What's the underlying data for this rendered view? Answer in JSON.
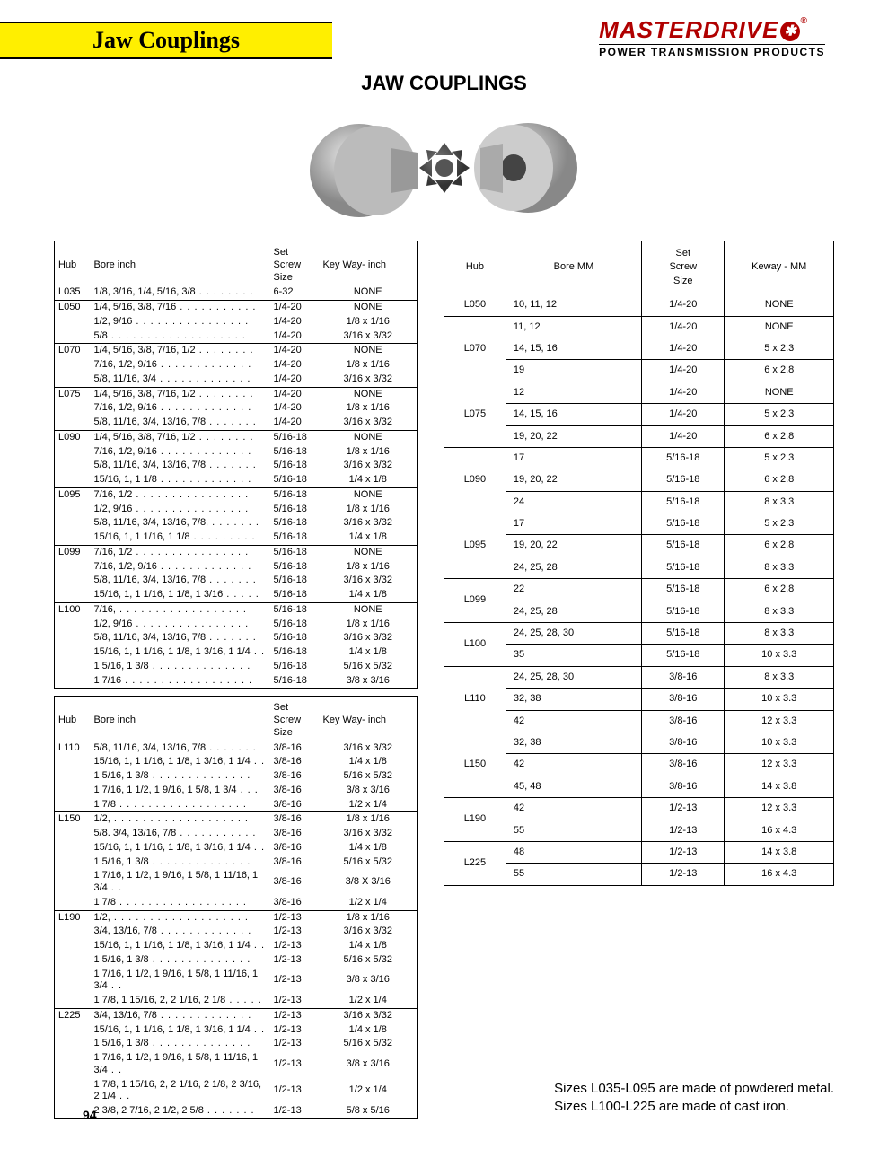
{
  "header": {
    "title": "Jaw Couplings"
  },
  "brand": {
    "name": "MASTERDRIVE",
    "tagline": "POWER TRANSMISSION PRODUCTS"
  },
  "page_title": "JAW COUPLINGS",
  "page_number": "94",
  "footnote_1": "Sizes L035-L095 are made of powdered metal.",
  "footnote_2": "Sizes L100-L225 are made of cast iron.",
  "inch_header": {
    "hub": "Hub",
    "bore": "Bore inch",
    "screw": "Set Screw Size",
    "kw": "Key Way- inch"
  },
  "mm_header": {
    "hub": "Hub",
    "bore": "Bore MM",
    "screw": "Set Screw Size",
    "kw": "Keway - MM"
  },
  "inch_table_1": [
    {
      "sep": true,
      "hub": "L035",
      "bore": "1/8, 3/16, 1/4, 5/16, 3/8",
      "screw": "6-32",
      "kw": "NONE"
    },
    {
      "sep": true,
      "hub": "L050",
      "bore": "1/4, 5/16, 3/8, 7/16",
      "screw": "1/4-20",
      "kw": "NONE"
    },
    {
      "hub": "",
      "bore": "1/2, 9/16",
      "screw": "1/4-20",
      "kw": "1/8   x   1/16"
    },
    {
      "hub": "",
      "bore": "5/8",
      "screw": "1/4-20",
      "kw": "3/16   x   3/32"
    },
    {
      "sep": true,
      "hub": "L070",
      "bore": "1/4, 5/16, 3/8, 7/16, 1/2",
      "screw": "1/4-20",
      "kw": "NONE"
    },
    {
      "hub": "",
      "bore": "7/16, 1/2, 9/16",
      "screw": "1/4-20",
      "kw": "1/8   x   1/16"
    },
    {
      "hub": "",
      "bore": "5/8, 11/16, 3/4",
      "screw": "1/4-20",
      "kw": "3/16   x   3/32"
    },
    {
      "sep": true,
      "hub": "L075",
      "bore": "1/4, 5/16, 3/8, 7/16, 1/2",
      "screw": "1/4-20",
      "kw": "NONE"
    },
    {
      "hub": "",
      "bore": "7/16, 1/2, 9/16",
      "screw": "1/4-20",
      "kw": "1/8   x   1/16"
    },
    {
      "hub": "",
      "bore": "5/8, 11/16, 3/4, 13/16, 7/8",
      "screw": "1/4-20",
      "kw": "3/16   x   3/32"
    },
    {
      "sep": true,
      "hub": "L090",
      "bore": "1/4, 5/16, 3/8, 7/16, 1/2",
      "screw": "5/16-18",
      "kw": "NONE"
    },
    {
      "hub": "",
      "bore": "7/16, 1/2, 9/16",
      "screw": "5/16-18",
      "kw": "1/8   x   1/16"
    },
    {
      "hub": "",
      "bore": "5/8, 11/16, 3/4, 13/16, 7/8",
      "screw": "5/16-18",
      "kw": "3/16   x   3/32"
    },
    {
      "hub": "",
      "bore": "15/16, 1, 1 1/8",
      "screw": "5/16-18",
      "kw": "1/4   x   1/8"
    },
    {
      "sep": true,
      "hub": "L095",
      "bore": "7/16, 1/2",
      "screw": "5/16-18",
      "kw": "NONE"
    },
    {
      "hub": "",
      "bore": "1/2, 9/16",
      "screw": "5/16-18",
      "kw": "1/8   x   1/16"
    },
    {
      "hub": "",
      "bore": "5/8, 11/16, 3/4, 13/16, 7/8,",
      "screw": "5/16-18",
      "kw": "3/16   x   3/32"
    },
    {
      "hub": "",
      "bore": "15/16, 1, 1 1/16, 1 1/8",
      "screw": "5/16-18",
      "kw": "1/4   x   1/8"
    },
    {
      "sep": true,
      "hub": "L099",
      "bore": "7/16, 1/2",
      "screw": "5/16-18",
      "kw": "NONE"
    },
    {
      "hub": "",
      "bore": "7/16, 1/2, 9/16",
      "screw": "5/16-18",
      "kw": "1/8   x   1/16"
    },
    {
      "hub": "",
      "bore": "5/8, 11/16, 3/4, 13/16, 7/8",
      "screw": "5/16-18",
      "kw": "3/16   x   3/32"
    },
    {
      "hub": "",
      "bore": "15/16, 1, 1 1/16, 1 1/8, 1 3/16",
      "screw": "5/16-18",
      "kw": "1/4   x   1/8"
    },
    {
      "sep": true,
      "hub": "L100",
      "bore": "7/16,",
      "screw": "5/16-18",
      "kw": "NONE"
    },
    {
      "hub": "",
      "bore": "1/2, 9/16",
      "screw": "5/16-18",
      "kw": "1/8   x   1/16"
    },
    {
      "hub": "",
      "bore": "5/8, 11/16, 3/4, 13/16, 7/8",
      "screw": "5/16-18",
      "kw": "3/16   x   3/32"
    },
    {
      "hub": "",
      "bore": "15/16, 1, 1 1/16, 1 1/8, 1 3/16, 1 1/4",
      "screw": "5/16-18",
      "kw": "1/4   x   1/8"
    },
    {
      "hub": "",
      "bore": "1 5/16, 1 3/8",
      "screw": "5/16-18",
      "kw": "5/16   x   5/32"
    },
    {
      "hub": "",
      "bore": "1 7/16",
      "screw": "5/16-18",
      "kw": "3/8   x   3/16"
    }
  ],
  "inch_table_2": [
    {
      "hub": "L110",
      "bore": "5/8, 11/16, 3/4, 13/16, 7/8",
      "screw": "3/8-16",
      "kw": "3/16   x   3/32"
    },
    {
      "hub": "",
      "bore": "15/16, 1, 1 1/16, 1 1/8, 1 3/16, 1 1/4",
      "screw": "3/8-16",
      "kw": "1/4   x   1/8"
    },
    {
      "hub": "",
      "bore": "1 5/16, 1 3/8",
      "screw": "3/8-16",
      "kw": "5/16   x   5/32"
    },
    {
      "hub": "",
      "bore": "1 7/16, 1 1/2, 1 9/16, 1 5/8, 1 3/4",
      "screw": "3/8-16",
      "kw": "3/8   x   3/16"
    },
    {
      "hub": "",
      "bore": "1 7/8",
      "screw": "3/8-16",
      "kw": "1/2   x   1/4"
    },
    {
      "sep": true,
      "hub": "L150",
      "bore": "1/2,",
      "screw": "3/8-16",
      "kw": "1/8   x   1/16"
    },
    {
      "hub": "",
      "bore": "5/8. 3/4, 13/16, 7/8",
      "screw": "3/8-16",
      "kw": "3/16   x   3/32"
    },
    {
      "hub": "",
      "bore": "15/16, 1, 1 1/16, 1 1/8, 1 3/16, 1 1/4",
      "screw": "3/8-16",
      "kw": "1/4   x   1/8"
    },
    {
      "hub": "",
      "bore": "1 5/16, 1 3/8",
      "screw": "3/8-16",
      "kw": "5/16   x   5/32"
    },
    {
      "hub": "",
      "bore": "1 7/16, 1 1/2, 1 9/16, 1 5/8, 1 11/16, 1 3/4",
      "screw": "3/8-16",
      "kw": "3/8   X   3/16"
    },
    {
      "hub": "",
      "bore": "1 7/8",
      "screw": "3/8-16",
      "kw": "1/2   x   1/4"
    },
    {
      "sep": true,
      "hub": "L190",
      "bore": "1/2,",
      "screw": "1/2-13",
      "kw": "1/8   x   1/16"
    },
    {
      "hub": "",
      "bore": "3/4, 13/16, 7/8",
      "screw": "1/2-13",
      "kw": "3/16   x   3/32"
    },
    {
      "hub": "",
      "bore": "15/16, 1, 1 1/16, 1 1/8, 1 3/16, 1 1/4",
      "screw": "1/2-13",
      "kw": "1/4   x   1/8"
    },
    {
      "hub": "",
      "bore": "1 5/16, 1 3/8",
      "screw": "1/2-13",
      "kw": "5/16   x   5/32"
    },
    {
      "hub": "",
      "bore": "1 7/16, 1 1/2, 1 9/16, 1 5/8, 1 11/16, 1 3/4",
      "screw": "1/2-13",
      "kw": "3/8   x   3/16"
    },
    {
      "hub": "",
      "bore": "1 7/8, 1 15/16, 2, 2 1/16, 2 1/8",
      "screw": "1/2-13",
      "kw": "1/2   x   1/4"
    },
    {
      "sep": true,
      "hub": "L225",
      "bore": "3/4, 13/16, 7/8",
      "screw": "1/2-13",
      "kw": "3/16   x   3/32"
    },
    {
      "hub": "",
      "bore": "15/16, 1, 1 1/16, 1 1/8, 1 3/16, 1 1/4",
      "screw": "1/2-13",
      "kw": "1/4   x   1/8"
    },
    {
      "hub": "",
      "bore": "1 5/16, 1 3/8",
      "screw": "1/2-13",
      "kw": "5/16   x   5/32"
    },
    {
      "hub": "",
      "bore": "1 7/16, 1 1/2, 1 9/16, 1 5/8, 1 11/16, 1 3/4",
      "screw": "1/2-13",
      "kw": "3/8   x   3/16"
    },
    {
      "hub": "",
      "bore": "1 7/8, 1 15/16, 2, 2 1/16, 2 1/8, 2 3/16, 2 1/4",
      "screw": "1/2-13",
      "kw": "1/2   x   1/4"
    },
    {
      "hub": "",
      "bore": "2 3/8, 2 7/16, 2 1/2, 2 5/8",
      "screw": "1/2-13",
      "kw": "5/8   x   5/16"
    }
  ],
  "mm_table": [
    {
      "hub": "L050",
      "rows": [
        {
          "bore": "10, 11, 12",
          "screw": "1/4-20",
          "kw": "NONE"
        }
      ]
    },
    {
      "hub": "L070",
      "rows": [
        {
          "bore": "11, 12",
          "screw": "1/4-20",
          "kw": "NONE"
        },
        {
          "bore": "14, 15, 16",
          "screw": "1/4-20",
          "kw": "5 x 2.3"
        },
        {
          "bore": "19",
          "screw": "1/4-20",
          "kw": "6 x 2.8"
        }
      ]
    },
    {
      "hub": "L075",
      "rows": [
        {
          "bore": "12",
          "screw": "1/4-20",
          "kw": "NONE"
        },
        {
          "bore": "14, 15, 16",
          "screw": "1/4-20",
          "kw": "5 x 2.3"
        },
        {
          "bore": "19, 20, 22",
          "screw": "1/4-20",
          "kw": "6 x 2.8"
        }
      ]
    },
    {
      "hub": "L090",
      "rows": [
        {
          "bore": "17",
          "screw": "5/16-18",
          "kw": "5 x 2.3"
        },
        {
          "bore": "19, 20, 22",
          "screw": "5/16-18",
          "kw": "6 x 2.8"
        },
        {
          "bore": "24",
          "screw": "5/16-18",
          "kw": "8 x 3.3"
        }
      ]
    },
    {
      "hub": "L095",
      "rows": [
        {
          "bore": "17",
          "screw": "5/16-18",
          "kw": "5 x 2.3"
        },
        {
          "bore": "19, 20, 22",
          "screw": "5/16-18",
          "kw": "6 x 2.8"
        },
        {
          "bore": "24, 25, 28",
          "screw": "5/16-18",
          "kw": "8 x 3.3"
        }
      ]
    },
    {
      "hub": "L099",
      "rows": [
        {
          "bore": "22",
          "screw": "5/16-18",
          "kw": "6 x 2.8"
        },
        {
          "bore": "24, 25, 28",
          "screw": "5/16-18",
          "kw": "8 x 3.3"
        }
      ]
    },
    {
      "hub": "L100",
      "rows": [
        {
          "bore": "24, 25, 28, 30",
          "screw": "5/16-18",
          "kw": "8 x 3.3"
        },
        {
          "bore": "35",
          "screw": "5/16-18",
          "kw": "10 x 3.3"
        }
      ]
    },
    {
      "hub": "L110",
      "rows": [
        {
          "bore": "24, 25, 28, 30",
          "screw": "3/8-16",
          "kw": "8 x 3.3"
        },
        {
          "bore": "32, 38",
          "screw": "3/8-16",
          "kw": "10 x 3.3"
        },
        {
          "bore": "42",
          "screw": "3/8-16",
          "kw": "12 x 3.3"
        }
      ]
    },
    {
      "hub": "L150",
      "rows": [
        {
          "bore": "32, 38",
          "screw": "3/8-16",
          "kw": "10 x 3.3"
        },
        {
          "bore": "42",
          "screw": "3/8-16",
          "kw": "12 x 3.3"
        },
        {
          "bore": "45, 48",
          "screw": "3/8-16",
          "kw": "14 x 3.8"
        }
      ]
    },
    {
      "hub": "L190",
      "rows": [
        {
          "bore": "42",
          "screw": "1/2-13",
          "kw": "12 x 3.3"
        },
        {
          "bore": "55",
          "screw": "1/2-13",
          "kw": "16 x 4.3"
        }
      ]
    },
    {
      "hub": "L225",
      "rows": [
        {
          "bore": "48",
          "screw": "1/2-13",
          "kw": "14 x 3.8"
        },
        {
          "bore": "55",
          "screw": "1/2-13",
          "kw": "16 x 4.3"
        }
      ]
    }
  ]
}
